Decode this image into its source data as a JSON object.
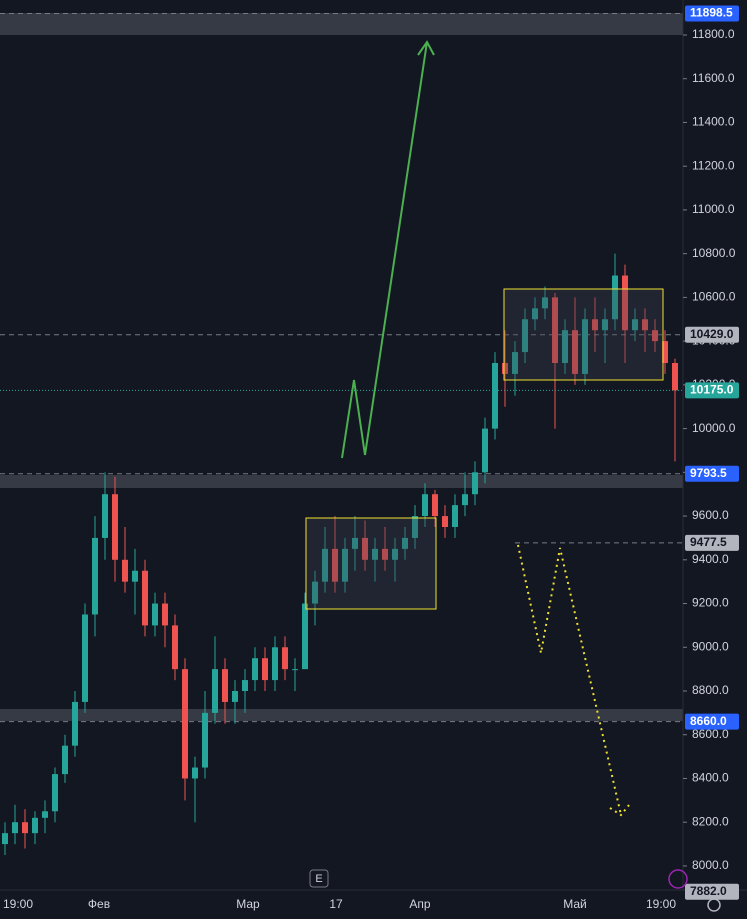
{
  "chart_data": {
    "type": "candlestick",
    "ylim": [
      7890,
      11960
    ],
    "yticks": [
      {
        "value": 8000,
        "label": "8000.0"
      },
      {
        "value": 8200,
        "label": "8200.0"
      },
      {
        "value": 8400,
        "label": "8400.0"
      },
      {
        "value": 8600,
        "label": "8600.0"
      },
      {
        "value": 8800,
        "label": "8800.0"
      },
      {
        "value": 9000,
        "label": "9000.0"
      },
      {
        "value": 9200,
        "label": "9200.0"
      },
      {
        "value": 9400,
        "label": "9400.0"
      },
      {
        "value": 9600,
        "label": "9600.0"
      },
      {
        "value": 9800,
        "label": "9800.0"
      },
      {
        "value": 10000,
        "label": "10000.0"
      },
      {
        "value": 10200,
        "label": "10200.0"
      },
      {
        "value": 10400,
        "label": "10400.0"
      },
      {
        "value": 10600,
        "label": "10600.0"
      },
      {
        "value": 10800,
        "label": "10800.0"
      },
      {
        "value": 11000,
        "label": "11000.0"
      },
      {
        "value": 11200,
        "label": "11200.0"
      },
      {
        "value": 11400,
        "label": "11400.0"
      },
      {
        "value": 11600,
        "label": "11600.0"
      },
      {
        "value": 11800,
        "label": "11800.0"
      }
    ],
    "x_labels": [
      "19:00",
      "Фев",
      "Мар",
      "17",
      "Апр",
      "Май",
      "19:00"
    ],
    "up_color": "#26a69a",
    "down_color": "#ef5350",
    "price_lines": [
      {
        "value": 11898.5,
        "label": "11898.5",
        "color": "#2962ff"
      },
      {
        "value": 10429,
        "label": "10429.0",
        "color": "#b2b5be"
      },
      {
        "value": 10175,
        "label": "10175.0",
        "color": "#26a69a"
      },
      {
        "value": 9793.5,
        "label": "9793.5",
        "color": "#2962ff"
      },
      {
        "value": 9477.5,
        "label": "9477.5",
        "color": "#b2b5be"
      },
      {
        "value": 8660,
        "label": "8660.0",
        "color": "#2962ff"
      },
      {
        "value": 7882,
        "label": "7882.0",
        "color": "#b2b5be"
      }
    ],
    "candles": [
      [
        8100,
        8200,
        8050,
        8150
      ],
      [
        8150,
        8280,
        8100,
        8200
      ],
      [
        8200,
        8260,
        8080,
        8150
      ],
      [
        8150,
        8250,
        8100,
        8220
      ],
      [
        8220,
        8300,
        8150,
        8250
      ],
      [
        8250,
        8450,
        8200,
        8420
      ],
      [
        8420,
        8600,
        8380,
        8550
      ],
      [
        8550,
        8800,
        8500,
        8750
      ],
      [
        8750,
        9200,
        8700,
        9150
      ],
      [
        9150,
        9600,
        9050,
        9500
      ],
      [
        9500,
        9800,
        9400,
        9700
      ],
      [
        9700,
        9780,
        9300,
        9400
      ],
      [
        9400,
        9550,
        9250,
        9300
      ],
      [
        9300,
        9450,
        9150,
        9350
      ],
      [
        9350,
        9400,
        9050,
        9100
      ],
      [
        9100,
        9250,
        9050,
        9200
      ],
      [
        9200,
        9250,
        9000,
        9100
      ],
      [
        9100,
        9150,
        8850,
        8900
      ],
      [
        8900,
        8950,
        8300,
        8400
      ],
      [
        8400,
        8500,
        8200,
        8450
      ],
      [
        8450,
        8800,
        8400,
        8700
      ],
      [
        8700,
        9050,
        8650,
        8900
      ],
      [
        8900,
        8950,
        8650,
        8750
      ],
      [
        8750,
        8850,
        8650,
        8800
      ],
      [
        8800,
        8900,
        8700,
        8850
      ],
      [
        8850,
        9000,
        8800,
        8950
      ],
      [
        8950,
        9000,
        8800,
        8850
      ],
      [
        8850,
        9050,
        8800,
        9000
      ],
      [
        9000,
        9050,
        8850,
        8900
      ],
      [
        8900,
        8950,
        8800,
        8900
      ],
      [
        8900,
        9250,
        8900,
        9200
      ],
      [
        9200,
        9350,
        9100,
        9300
      ],
      [
        9300,
        9550,
        9250,
        9450
      ],
      [
        9450,
        9600,
        9250,
        9300
      ],
      [
        9300,
        9500,
        9250,
        9450
      ],
      [
        9450,
        9600,
        9350,
        9500
      ],
      [
        9500,
        9580,
        9350,
        9400
      ],
      [
        9400,
        9500,
        9300,
        9450
      ],
      [
        9450,
        9550,
        9350,
        9400
      ],
      [
        9400,
        9500,
        9300,
        9450
      ],
      [
        9450,
        9550,
        9400,
        9500
      ],
      [
        9500,
        9650,
        9450,
        9600
      ],
      [
        9600,
        9750,
        9550,
        9700
      ],
      [
        9700,
        9720,
        9550,
        9600
      ],
      [
        9600,
        9650,
        9500,
        9550
      ],
      [
        9550,
        9700,
        9500,
        9650
      ],
      [
        9650,
        9800,
        9600,
        9700
      ],
      [
        9700,
        9850,
        9650,
        9800
      ],
      [
        9800,
        10050,
        9750,
        10000
      ],
      [
        10000,
        10350,
        9950,
        10300
      ],
      [
        10300,
        10450,
        10100,
        10250
      ],
      [
        10250,
        10400,
        10150,
        10350
      ],
      [
        10350,
        10550,
        10300,
        10500
      ],
      [
        10500,
        10600,
        10450,
        10550
      ],
      [
        10550,
        10650,
        10500,
        10600
      ],
      [
        10600,
        10620,
        10000,
        10300
      ],
      [
        10300,
        10500,
        10250,
        10450
      ],
      [
        10450,
        10600,
        10200,
        10250
      ],
      [
        10250,
        10550,
        10200,
        10500
      ],
      [
        10500,
        10600,
        10350,
        10450
      ],
      [
        10450,
        10550,
        10300,
        10500
      ],
      [
        10500,
        10800,
        10450,
        10700
      ],
      [
        10700,
        10750,
        10300,
        10450
      ],
      [
        10450,
        10550,
        10400,
        10500
      ],
      [
        10500,
        10550,
        10350,
        10450
      ],
      [
        10450,
        10500,
        10350,
        10400
      ],
      [
        10400,
        10450,
        10250,
        10300
      ],
      [
        10300,
        10320,
        9850,
        10175
      ]
    ],
    "events_badge": "E"
  }
}
